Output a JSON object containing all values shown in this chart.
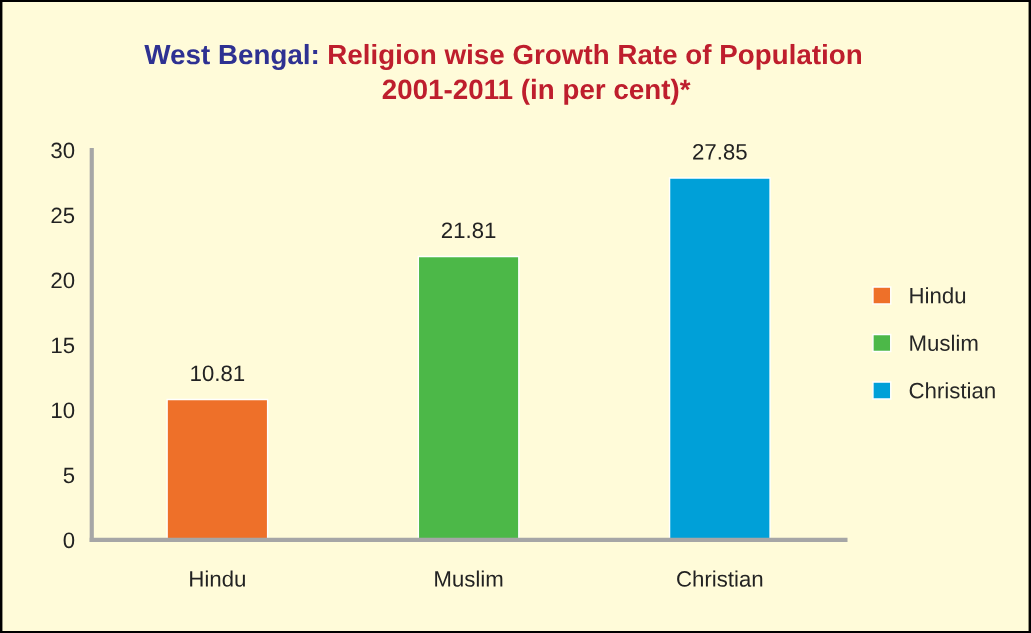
{
  "chart_data": {
    "type": "bar",
    "title": "West Bengal: Religion wise Growth Rate of Population",
    "subtitle": "2001-2011 (in per cent)*",
    "categories": [
      "Hindu",
      "Muslim",
      "Christian"
    ],
    "series": [
      {
        "name": "Hindu",
        "color": "#ee7029",
        "values": [
          10.81,
          null,
          null
        ]
      },
      {
        "name": "Muslim",
        "color": "#4cb848",
        "values": [
          null,
          21.81,
          null
        ]
      },
      {
        "name": "Christian",
        "color": "#00a0d8",
        "values": [
          null,
          null,
          27.85
        ]
      }
    ],
    "ylim": [
      0,
      30
    ],
    "yticks": [
      0,
      5,
      10,
      15,
      20,
      25,
      30
    ],
    "data_labels": true,
    "legend": "right",
    "grid": false
  }
}
